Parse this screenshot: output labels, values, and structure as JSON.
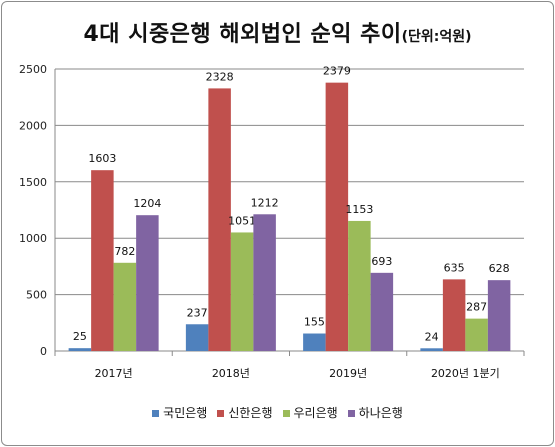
{
  "chart_data": {
    "type": "bar",
    "title": "4대 시중은행 해외법인 순익 추이",
    "unit_note": "(단위:억원)",
    "categories": [
      "2017년",
      "2018년",
      "2019년",
      "2020년 1분기"
    ],
    "series": [
      {
        "name": "국민은행",
        "color": "#4f81bd",
        "values": [
          25,
          237,
          155,
          24
        ]
      },
      {
        "name": "신한은행",
        "color": "#c0504d",
        "values": [
          1603,
          2328,
          2379,
          635
        ]
      },
      {
        "name": "우리은행",
        "color": "#9bbb59",
        "values": [
          782,
          1051,
          1153,
          287
        ]
      },
      {
        "name": "하나은행",
        "color": "#8064a2",
        "values": [
          1204,
          1212,
          693,
          628
        ]
      }
    ],
    "ylim": [
      0,
      2500
    ],
    "yticks": [
      0,
      500,
      1000,
      1500,
      2000,
      2500
    ],
    "grid": true,
    "legend_position": "bottom"
  }
}
